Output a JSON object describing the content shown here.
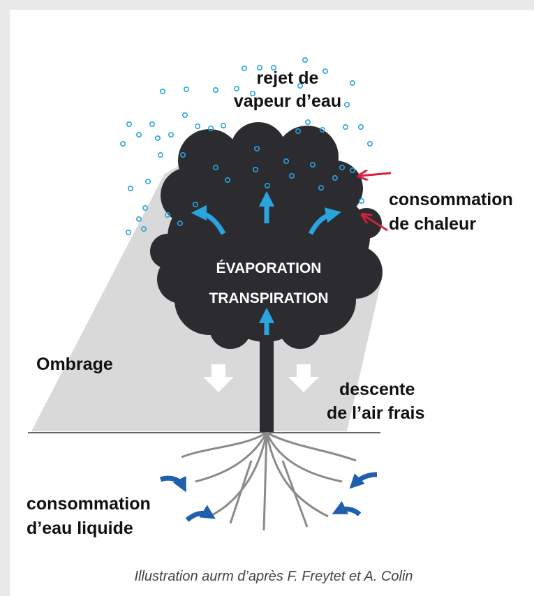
{
  "vapor_label": [
    "rejet de",
    "vapeur d’eau"
  ],
  "heat_label": [
    "consommation",
    "de chaleur"
  ],
  "process_label": [
    "ÉVAPORATION",
    "TRANSPIRATION"
  ],
  "shade_label": "Ombrage",
  "air_label": [
    "descente",
    "de l’air frais"
  ],
  "water_label": [
    "consommation",
    "d’eau liquide"
  ],
  "caption": "Illustration aurm d’après F. Freytet et A. Colin"
}
